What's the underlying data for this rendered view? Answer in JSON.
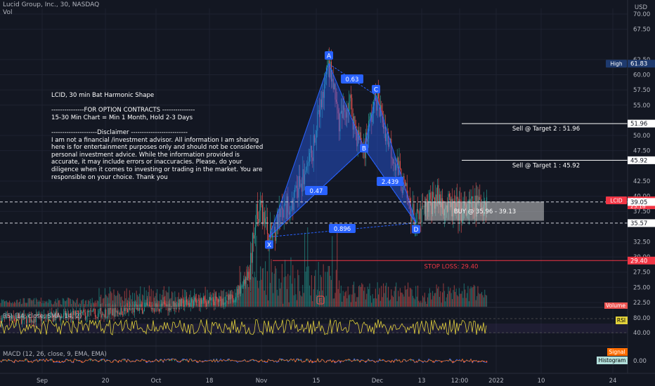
{
  "header": {
    "symbol_line": "Lucid Group, Inc., 30, NASDAQ",
    "volume_label": "Vol",
    "currency": "USD"
  },
  "colors": {
    "background": "#131722",
    "up": "#26a69a",
    "down": "#ef5350",
    "pattern": "#2962ff",
    "label_bg": "#2962ff",
    "rsi": "#e3d23b",
    "stop": "#f23645",
    "white": "#ffffff"
  },
  "note": {
    "text": "LCID, 30 min Bat Harmonic Shape\n\n---------------FOR OPTION CONTRACTS ---------------\n15-30 Min Chart = Min 1 Month, Hold 2-3 Days\n\n---------------------Disclaimer --------------------------\nI am not a financial /investment advisor. All information I am sharing here is for entertainment purposes only and should not be considered personal investment advice. While the information provided is accurate, it may include errors or inaccuracies. Please, do your diligence when it comes to investing or trading in the market. You are responsible on your choice. Thank you"
  },
  "chart_data": {
    "type": "candlestick",
    "price_axis": {
      "ticks": [
        "70.00",
        "67.50",
        "62.50",
        "60.00",
        "57.50",
        "55.00",
        "50.00",
        "47.50",
        "42.50",
        "40.00",
        "37.50",
        "32.50",
        "30.00",
        "27.50",
        "25.00",
        "22.50"
      ],
      "range": [
        21.5,
        71.5
      ]
    },
    "time_axis": {
      "labels": [
        "Sep",
        "20",
        "Oct",
        "18",
        "Nov",
        "15",
        "Dec",
        "13",
        "12:00",
        "2022",
        "10",
        "24"
      ]
    },
    "price_tags": [
      {
        "label": "High",
        "value": "61.83",
        "style": "high"
      },
      {
        "value": "51.96",
        "style": "white"
      },
      {
        "value": "45.92",
        "style": "white"
      },
      {
        "label": "LCID",
        "value": "39.32",
        "sub": "23:18",
        "style": "red"
      },
      {
        "value": "39.05",
        "style": "white"
      },
      {
        "value": "35.57",
        "style": "white"
      },
      {
        "value": "29.40",
        "style": "red"
      }
    ],
    "pattern": {
      "points": [
        {
          "name": "X",
          "price": 33.3
        },
        {
          "name": "A",
          "price": 61.8
        },
        {
          "name": "B",
          "price": 47.9
        },
        {
          "name": "C",
          "price": 56.6
        },
        {
          "name": "D",
          "price": 35.6
        }
      ],
      "ratios": [
        "0.63",
        "0.47",
        "2.439",
        "0.896"
      ]
    },
    "annotations": {
      "target2": "Sell @ Target 2 : 51.96",
      "target1": "Sell @ Target 1 : 45.92",
      "buy_zone": "BUY @ 35.96 - 39.13",
      "stop_loss": "STOP LOSS: 29.40",
      "buy_zone_range": [
        35.96,
        39.13
      ],
      "target1_value": 45.92,
      "target2_value": 51.96,
      "stop_value": 29.4
    },
    "indicators": {
      "volume_badge": "Volume",
      "rsi": {
        "title": "RSI (14, close, SMA, 14, 2)",
        "badge": "RSI",
        "ticks": [
          "80.00",
          "40.00"
        ]
      },
      "macd": {
        "title": "MACD (12, 26, close, 9, EMA, EMA)",
        "badges": [
          "Signal",
          "Histogram"
        ],
        "ticks": [
          "0.00"
        ]
      }
    }
  }
}
